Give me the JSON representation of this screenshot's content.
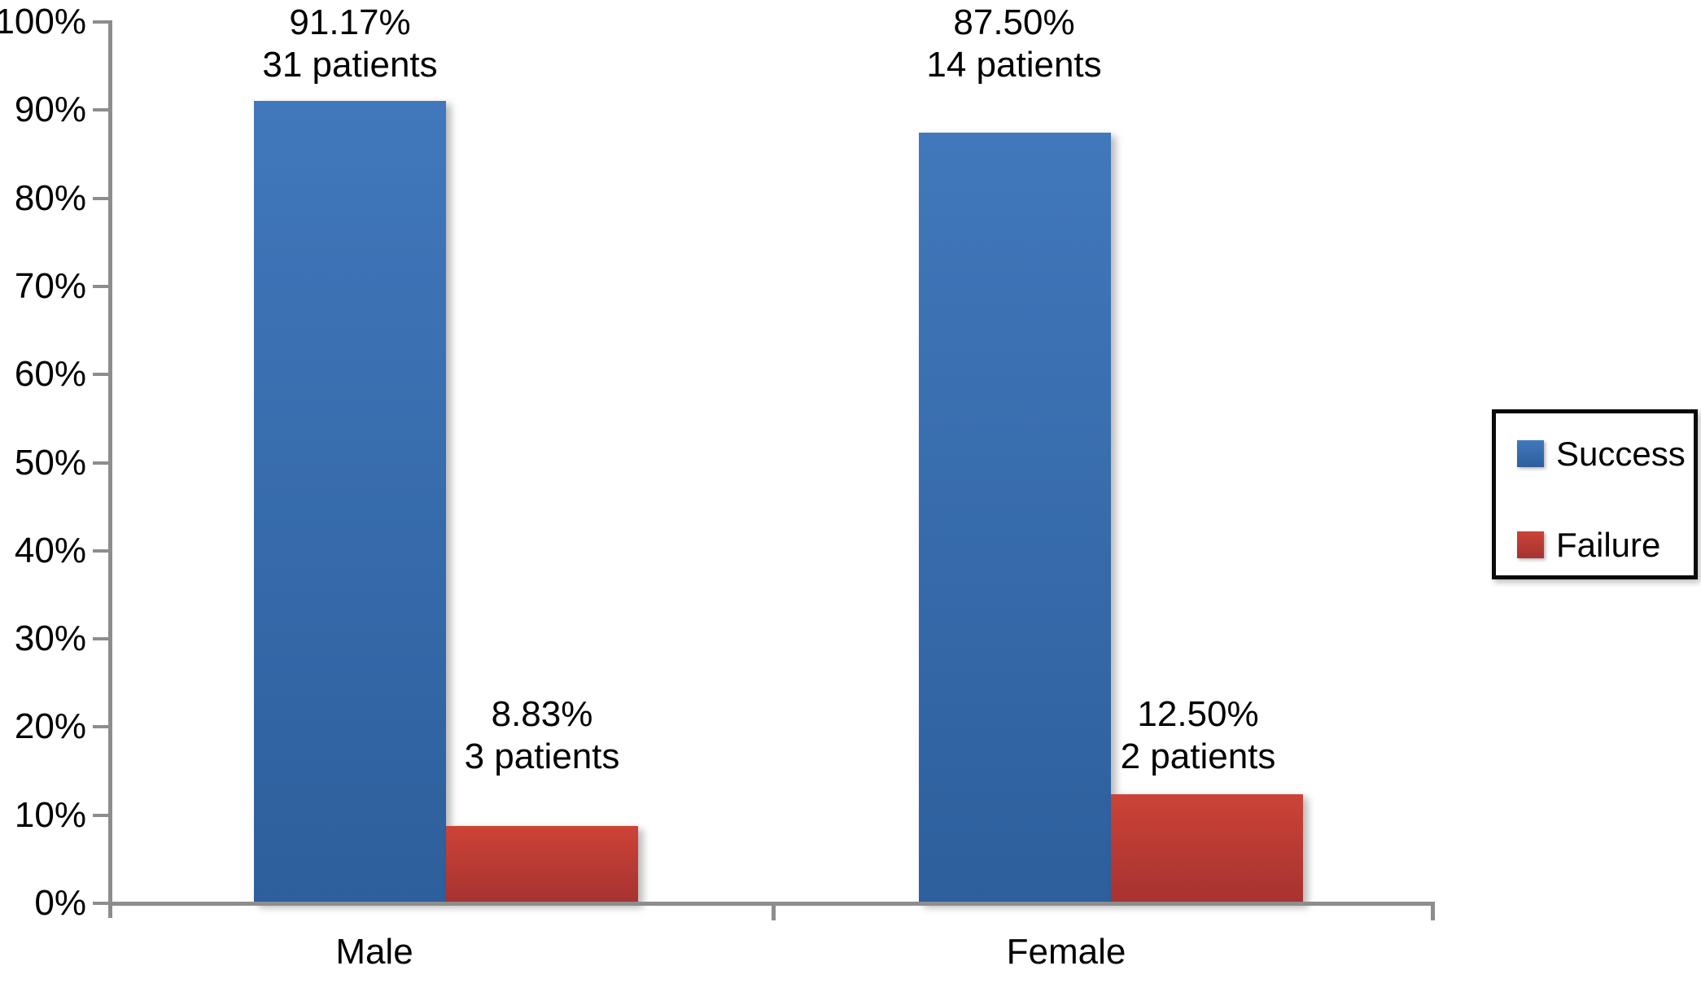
{
  "page": {
    "background_color": "#ffffff",
    "text_color": "#000000",
    "axis_color": "#8D8D8D"
  },
  "chart_data": {
    "type": "bar",
    "title": "",
    "xlabel": "",
    "ylabel": "",
    "categories": [
      "Male",
      "Female"
    ],
    "series": [
      {
        "name": "Success",
        "values": [
          91.17,
          87.5
        ],
        "value_labels": [
          "91.17%",
          "87.50%"
        ],
        "count_labels": [
          "31 patients",
          "14 patients"
        ],
        "color_top": "#4178BC",
        "color_bottom": "#2D5F9C"
      },
      {
        "name": "Failure",
        "values": [
          8.83,
          12.5
        ],
        "value_labels": [
          "8.83%",
          "12.50%"
        ],
        "count_labels": [
          "3 patients",
          "2 patients"
        ],
        "color_top": "#CC4337",
        "color_bottom": "#A63230"
      }
    ],
    "ylim": [
      0,
      100
    ],
    "yticks": {
      "values": [
        0,
        10,
        20,
        30,
        40,
        50,
        60,
        70,
        80,
        90,
        100
      ],
      "labels": [
        "0%",
        "10%",
        "20%",
        "30%",
        "40%",
        "50%",
        "60%",
        "70%",
        "80%",
        "90%",
        "100%"
      ]
    },
    "grid": false,
    "legend_position": "right"
  }
}
